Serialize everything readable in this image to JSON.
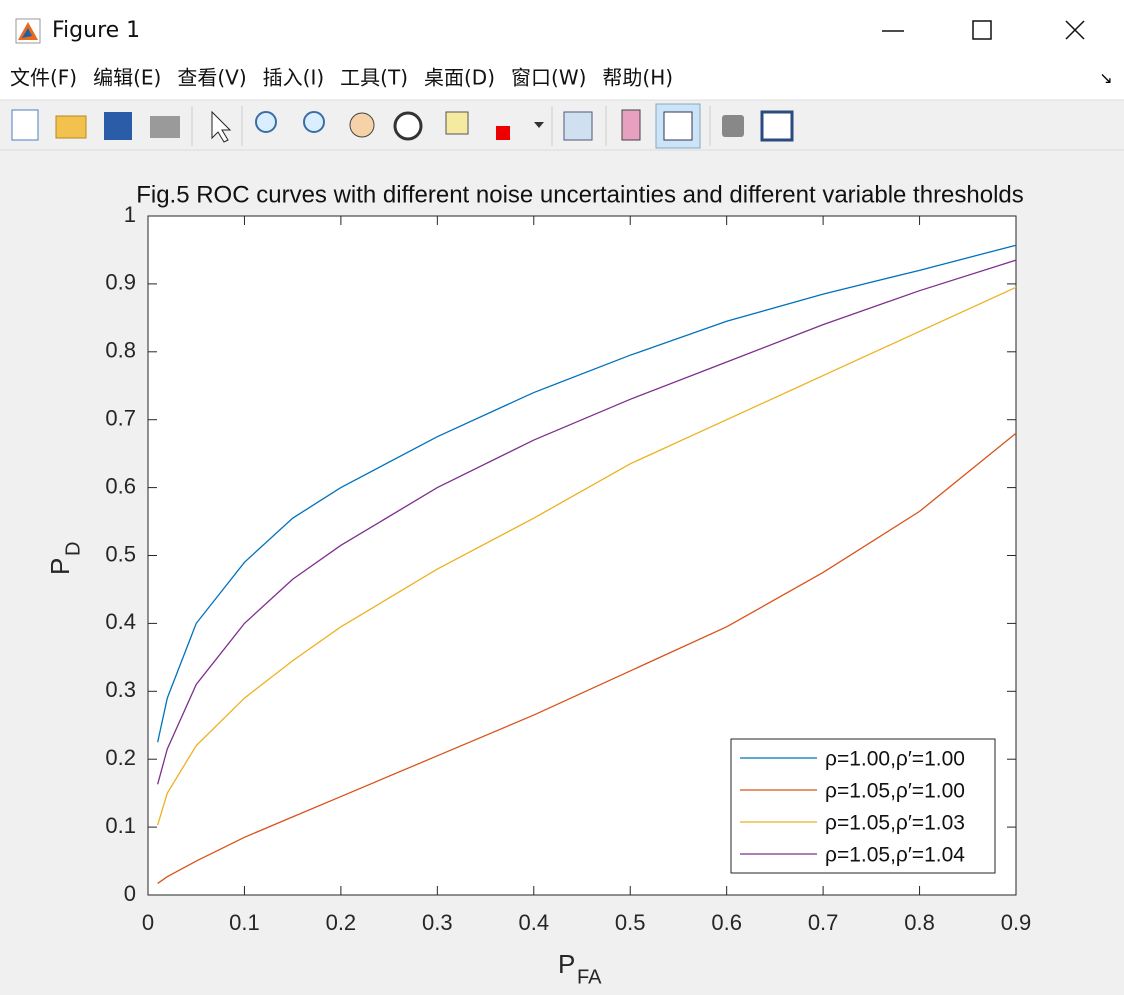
{
  "window": {
    "title": "Figure 1",
    "menu": [
      "文件(F)",
      "编辑(E)",
      "查看(V)",
      "插入(I)",
      "工具(T)",
      "桌面(D)",
      "窗口(W)",
      "帮助(H)"
    ]
  },
  "chart_data": {
    "type": "line",
    "title": "Fig.5 ROC curves with different noise uncertainties and different variable thresholds",
    "xlabel": "P",
    "xlabel_subscript": "FA",
    "ylabel": "P",
    "ylabel_subscript": "D",
    "x": [
      0.01,
      0.02,
      0.05,
      0.1,
      0.15,
      0.2,
      0.3,
      0.4,
      0.5,
      0.6,
      0.7,
      0.8,
      0.9
    ],
    "series": [
      {
        "name": "ρ=1.00,ρ′=1.00",
        "color": "#0072bd",
        "values": [
          0.225,
          0.29,
          0.4,
          0.49,
          0.555,
          0.6,
          0.675,
          0.74,
          0.795,
          0.845,
          0.885,
          0.92,
          0.957
        ]
      },
      {
        "name": "ρ=1.05,ρ′=1.00",
        "color": "#d95319",
        "values": [
          0.017,
          0.027,
          0.05,
          0.085,
          0.115,
          0.145,
          0.205,
          0.265,
          0.33,
          0.395,
          0.475,
          0.565,
          0.68
        ]
      },
      {
        "name": "ρ=1.05,ρ′=1.03",
        "color": "#edb120",
        "values": [
          0.103,
          0.15,
          0.22,
          0.29,
          0.345,
          0.395,
          0.48,
          0.555,
          0.635,
          0.7,
          0.765,
          0.83,
          0.895
        ]
      },
      {
        "name": "ρ=1.05,ρ′=1.04",
        "color": "#7e2f8e",
        "values": [
          0.163,
          0.215,
          0.31,
          0.4,
          0.465,
          0.515,
          0.6,
          0.67,
          0.73,
          0.785,
          0.84,
          0.89,
          0.935
        ]
      }
    ],
    "xlim": [
      0,
      0.9
    ],
    "xticks": [
      0,
      0.1,
      0.2,
      0.3,
      0.4,
      0.5,
      0.6,
      0.7,
      0.8,
      0.9
    ],
    "ylim": [
      0,
      1
    ],
    "yticks": [
      0,
      0.1,
      0.2,
      0.3,
      0.4,
      0.5,
      0.6,
      0.7,
      0.8,
      0.9,
      1
    ],
    "grid": false,
    "legend": "southeast"
  }
}
